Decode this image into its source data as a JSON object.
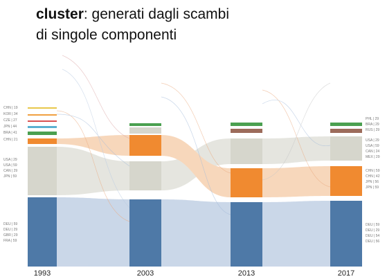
{
  "title": {
    "bold": "cluster",
    "rest_line1": ": generati dagli scambi",
    "line2": "di singole componenti"
  },
  "years": [
    "1993",
    "2003",
    "2013",
    "2017"
  ],
  "left_labels": [
    "CHN | 19",
    "KOR | 34",
    "CZE | 27",
    "JPN | 44",
    "BRA | 41",
    "CHN | 21",
    "USA | 29",
    "USA | 59",
    "CAN | 29",
    "JPN | 59",
    "DEU | 59",
    "DEU | 29",
    "GBR | 29",
    "FRA | 59"
  ],
  "right_labels": [
    "PHL | 29",
    "BRA | 29",
    "RUS | 29",
    "USA | 29",
    "USA | 59",
    "CAN | 24",
    "MEX | 29",
    "CHN | 59",
    "CHN | 42",
    "JPN | 56",
    "JPN | 59",
    "DEU | 59",
    "DEU | 29",
    "DEU | 54",
    "DEU | 56"
  ]
}
